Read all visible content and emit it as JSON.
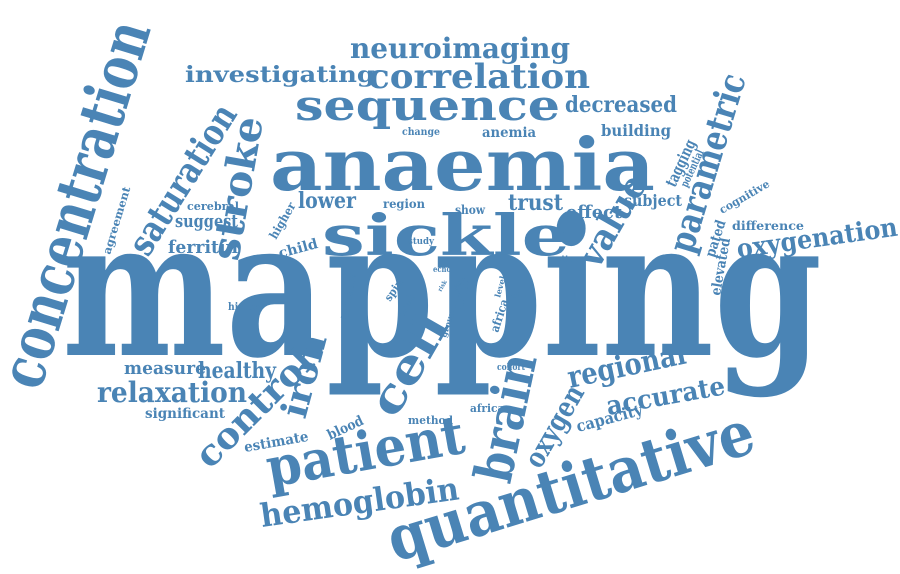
{
  "word_color": "#4a84b5",
  "words": [
    "mapping",
    "quantitative",
    "anaemia",
    "sickle",
    "concentration",
    "patient",
    "sequence",
    "correlation",
    "neuroimaging",
    "investigating",
    "brain",
    "cell",
    "stroke",
    "saturation",
    "hemoglobin",
    "parametric",
    "value",
    "oxygenation",
    "control",
    "iron",
    "relaxation",
    "regional",
    "accurate",
    "decreased",
    "healthy",
    "measure",
    "oxygen",
    "ferritin",
    "suggest",
    "trust",
    "lower",
    "effect",
    "subject",
    "building",
    "tagging",
    "potential",
    "cognitive",
    "difference",
    "elevated",
    "pated",
    "estimate",
    "blood",
    "method",
    "african",
    "capacity",
    "significant",
    "region",
    "show",
    "child",
    "higher",
    "cerebral",
    "agreement",
    "study",
    "change",
    "anemia",
    "matter",
    "echo",
    "prior",
    "spin",
    "used",
    "group",
    "level",
    "vein",
    "africa",
    "tanzania",
    "history",
    "cohort",
    "risk",
    "fox"
  ]
}
